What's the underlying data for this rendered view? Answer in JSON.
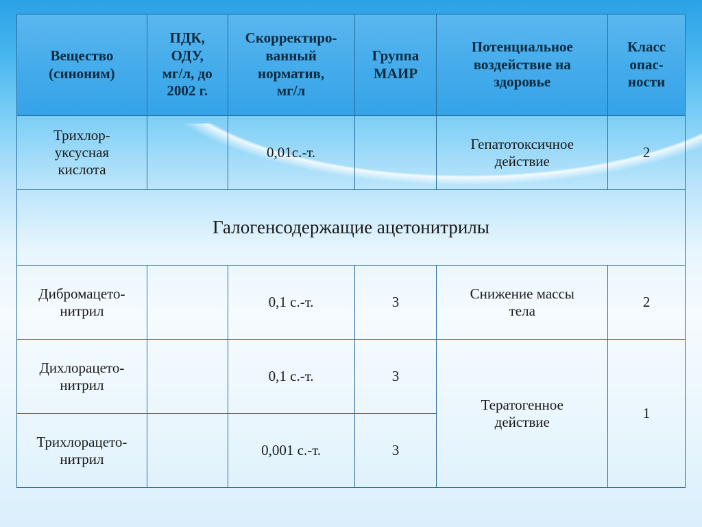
{
  "table": {
    "columns": [
      "Вещество\n(синоним)",
      "ПДК,\nОДУ,\nмг/л, до\n2002 г.",
      "Скорректиро-\nванный\nнорматив,\nмг/л",
      "Группа\nМАИР",
      "Потенциальное\nвоздействие на\nздоровье",
      "Класс\nопас-\nности"
    ],
    "section_title": "Галогенсодержащие ацетонитрилы",
    "row1": {
      "substance": "Трихлор-\nуксусная\nкислота",
      "pdk": "",
      "norm": "0,01с.-т.",
      "mair": "",
      "effect": "Гепатотоксичное\nдействие",
      "hazard": "2"
    },
    "row2": {
      "substance": "Дибромацето-\nнитрил",
      "pdk": "",
      "norm": "0,1 с.-т.",
      "mair": "3",
      "effect": "Снижение массы\nтела",
      "hazard": "2"
    },
    "row3": {
      "substance": "Дихлорацето-\nнитрил",
      "pdk": "",
      "norm": "0,1 с.-т.",
      "mair": "3"
    },
    "row4": {
      "substance": "Трихлорацето-\nнитрил",
      "pdk": "",
      "norm": "0,001 с.-т.",
      "mair": "3"
    },
    "merged_effect_34": "Тератогенное\nдействие",
    "merged_hazard_34": "1",
    "styling": {
      "header_gradient": [
        "#5ab6ef",
        "#35a3e8"
      ],
      "border_color": "#2b6b9d",
      "header_font_size_pt": 16,
      "cell_font_size_pt": 16,
      "section_font_size_pt": 20,
      "page_bg_gradient": [
        "#2aa2e6",
        "#e9f6fd",
        "#d9effc"
      ],
      "font_family": "Times New Roman",
      "text_color": "#1a1a1a"
    }
  }
}
